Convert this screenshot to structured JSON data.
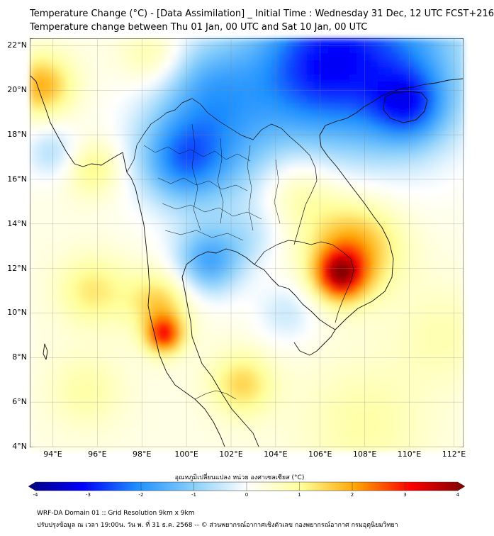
{
  "header": {
    "title_line1": "Temperature Change (°C) - [Data Assimilation] _ Initial Time : Wednesday 31 Dec, 12 UTC FCST+216",
    "title_line2": "Temperature change between Thu 01 Jan, 00 UTC and Sat 10 Jan, 00 UTC"
  },
  "map": {
    "lat_labels": [
      "22°N",
      "20°N",
      "18°N",
      "16°N",
      "14°N",
      "12°N",
      "10°N",
      "8°N",
      "6°N",
      "4°N"
    ],
    "lon_labels": [
      "94°E",
      "96°E",
      "98°E",
      "100°E",
      "102°E",
      "104°E",
      "106°E",
      "108°E",
      "110°E",
      "112°E"
    ],
    "lat_range": [
      4,
      22.3
    ],
    "lon_range": [
      93,
      112.4
    ],
    "field_blobs": [
      {
        "lon": 101.0,
        "lat": 17.8,
        "value": -1.6,
        "spread": 2.3
      },
      {
        "lon": 101.0,
        "lat": 12.3,
        "value": -1.8,
        "spread": 1.1
      },
      {
        "lon": 99.8,
        "lat": 16.8,
        "value": -1.3,
        "spread": 1.3
      },
      {
        "lon": 108.0,
        "lat": 21.5,
        "value": -2.5,
        "spread": 3.2
      },
      {
        "lon": 110.0,
        "lat": 19.3,
        "value": -1.6,
        "spread": 1.2
      },
      {
        "lon": 105.5,
        "lat": 21.0,
        "value": -1.2,
        "spread": 2.0
      },
      {
        "lon": 94.0,
        "lat": 17.2,
        "value": -0.9,
        "spread": 0.9
      },
      {
        "lon": 101.0,
        "lat": 20.5,
        "value": -0.8,
        "spread": 1.5
      },
      {
        "lon": 104.5,
        "lat": 10.0,
        "value": -0.7,
        "spread": 1.0
      },
      {
        "lon": 103.0,
        "lat": 13.5,
        "value": -0.5,
        "spread": 1.0
      },
      {
        "lon": 106.9,
        "lat": 11.7,
        "value": 2.7,
        "spread": 0.8
      },
      {
        "lon": 107.5,
        "lat": 13.0,
        "value": 1.7,
        "spread": 1.5
      },
      {
        "lon": 99.0,
        "lat": 9.0,
        "value": 2.4,
        "spread": 0.6
      },
      {
        "lon": 98.8,
        "lat": 10.5,
        "value": 1.3,
        "spread": 1.0
      },
      {
        "lon": 93.5,
        "lat": 20.2,
        "value": 1.6,
        "spread": 1.0
      },
      {
        "lon": 95.8,
        "lat": 11.0,
        "value": 1.0,
        "spread": 1.1
      },
      {
        "lon": 102.5,
        "lat": 6.8,
        "value": 1.2,
        "spread": 1.0
      },
      {
        "lon": 105.0,
        "lat": 15.5,
        "value": 0.8,
        "spread": 1.2
      },
      {
        "lon": 95.8,
        "lat": 16.5,
        "value": 1.0,
        "spread": 0.9
      },
      {
        "lon": 98.5,
        "lat": 21.5,
        "value": 0.8,
        "spread": 1.0
      },
      {
        "lon": 108.0,
        "lat": 5.0,
        "value": 0.6,
        "spread": 2.0
      },
      {
        "lon": 111.5,
        "lat": 9.0,
        "value": 0.5,
        "spread": 1.5
      },
      {
        "lon": 95.5,
        "lat": 6.5,
        "value": 0.6,
        "spread": 1.2
      }
    ]
  },
  "colorbar": {
    "title": "อุณหภูมิเปลี่ยนแปลง หน่วย องศาเซลเซียส (°C)",
    "min": -4,
    "max": 4,
    "ticks": [
      "-4",
      "-3",
      "-2",
      "-1",
      "0",
      "1",
      "2",
      "3",
      "4"
    ],
    "colors": [
      "#000080",
      "#0000ff",
      "#1e90ff",
      "#87cefa",
      "#ffffff",
      "#ffff99",
      "#ffa500",
      "#ff0000",
      "#800000"
    ]
  },
  "footer": {
    "line1": "WRF-DA Domain 01 :: Grid Resolution 9km x 9km",
    "line2": "ปรับปรุงข้อมูล ณ เวลา 19:00น. วัน พ. ที่ 31 ธ.ค. 2568 -- © ส่วนพยากรณ์อากาศเชิงตัวเลข กองพยากรณ์อากาศ กรมอุตุนิยมวิทยา"
  }
}
